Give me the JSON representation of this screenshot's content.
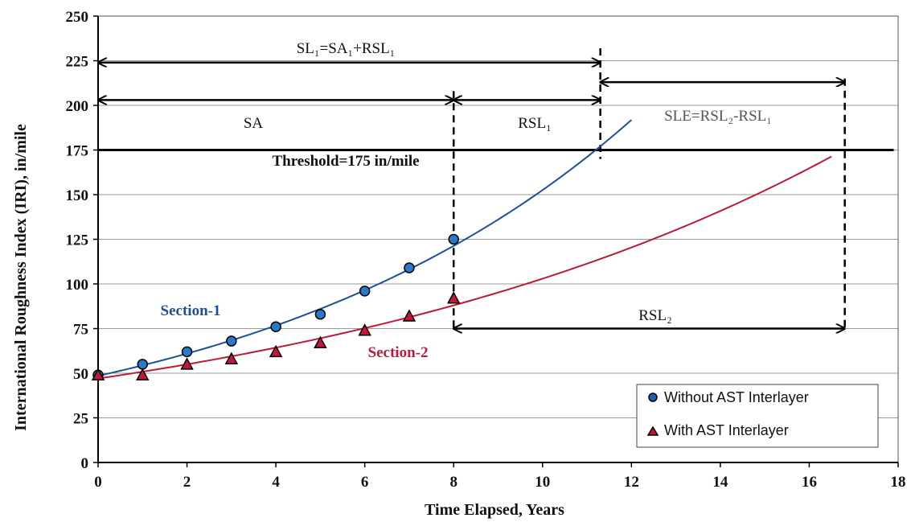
{
  "chart_data": {
    "type": "line",
    "xlabel": "Time Elapsed, Years",
    "ylabel": "International Roughness Index (IRI), in/mile",
    "xlim": [
      0,
      18
    ],
    "ylim": [
      0,
      250
    ],
    "x_ticks": [
      0,
      2,
      4,
      6,
      8,
      10,
      12,
      14,
      16,
      18
    ],
    "y_ticks": [
      0,
      25,
      50,
      75,
      100,
      125,
      150,
      175,
      200,
      225,
      250
    ],
    "grid": "horizontal",
    "legend_position": "bottom-right",
    "series": [
      {
        "name": "Without AST Interlayer",
        "label": "Section-1",
        "color": "#1f4e9b",
        "marker": "circle",
        "x": [
          0,
          1,
          2,
          3,
          4,
          5,
          6,
          7,
          8
        ],
        "y": [
          49,
          55,
          62,
          68,
          76,
          83,
          96,
          109,
          125
        ],
        "fit": {
          "y0": 48.5,
          "rate": 0.1146,
          "x_end": 12
        }
      },
      {
        "name": "With AST Interlayer",
        "label": "Section-2",
        "color": "#c0183a",
        "marker": "triangle",
        "x": [
          0,
          1,
          2,
          3,
          4,
          5,
          6,
          7,
          8
        ],
        "y": [
          49,
          49,
          55,
          58,
          62,
          67,
          74,
          82,
          92
        ],
        "fit": {
          "y0": 47,
          "rate": 0.0784,
          "x_end": 16.5
        }
      }
    ],
    "threshold": {
      "value": 175,
      "label": "Threshold=175 in/mile"
    },
    "annotations": {
      "sl1": "SL₁=SA₁+RSL₁",
      "sa": "SA",
      "rsl1": "RSL₁",
      "sle": "SLE=RSL₂-RSL₁",
      "rsl2": "RSL₂"
    },
    "markers_x": {
      "sa_end": 8,
      "sl1_end": 11.3,
      "sl2_end": 16.8
    }
  }
}
